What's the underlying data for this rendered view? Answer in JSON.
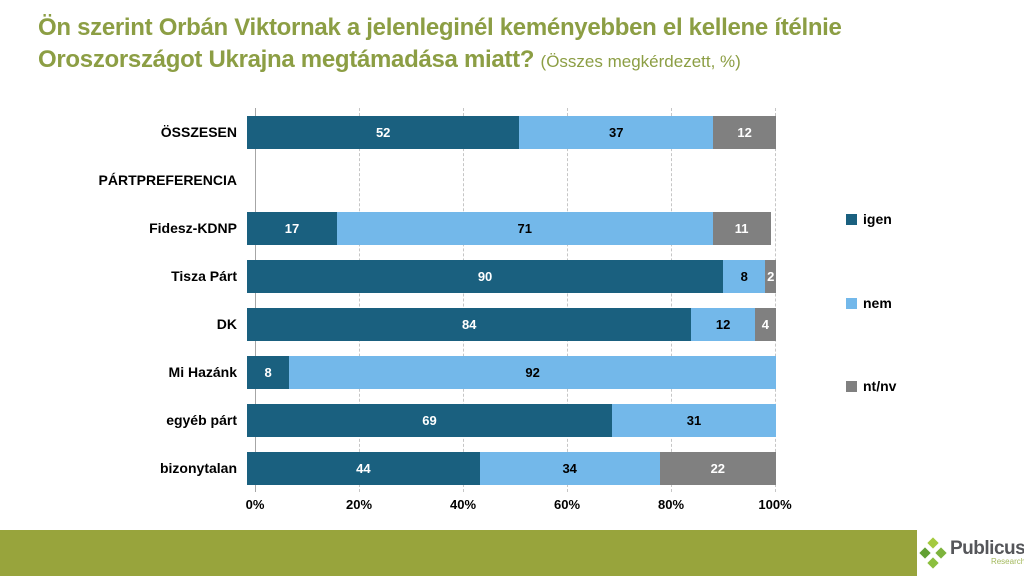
{
  "title": {
    "line1": "Ön szerint Orbán Viktornak a jelenleginél keményebben el kellene ítélnie",
    "line2": "Oroszországot Ukrajna megtámadása miatt?",
    "suffix": "(Összes megkérdezett, %)"
  },
  "chart_data": {
    "type": "bar",
    "orientation": "horizontal",
    "stacked": true,
    "unit": "%",
    "categories": [
      "ÖSSZESEN",
      "PÁRTPREFERENCIA",
      "Fidesz-KDNP",
      "Tisza Párt",
      "DK",
      "Mi Hazánk",
      "egyéb párt",
      "bizonytalan"
    ],
    "series": [
      {
        "name": "igen",
        "color": "#1a607f",
        "label_color": "#ffffff",
        "values": [
          52,
          null,
          17,
          90,
          84,
          8,
          69,
          44
        ]
      },
      {
        "name": "nem",
        "color": "#73b8ea",
        "label_color": "#000000",
        "values": [
          37,
          null,
          71,
          8,
          12,
          92,
          31,
          34
        ]
      },
      {
        "name": "nt/nv",
        "color": "#808080",
        "label_color": "#ffffff",
        "values": [
          12,
          null,
          11,
          2,
          4,
          0,
          0,
          22
        ]
      }
    ],
    "x_ticks": [
      "0%",
      "20%",
      "40%",
      "60%",
      "80%",
      "100%"
    ],
    "xlim": [
      0,
      100
    ],
    "grid": "vertical-dashed",
    "legend_position": "right"
  },
  "footer": {
    "brand": "Publicus",
    "brand_sub": "Research"
  },
  "colors": {
    "title_green": "#8c9e44",
    "footer_green": "#98a43c",
    "grid_gray": "#c6c6c6",
    "axis_gray": "#a6a6a6"
  }
}
